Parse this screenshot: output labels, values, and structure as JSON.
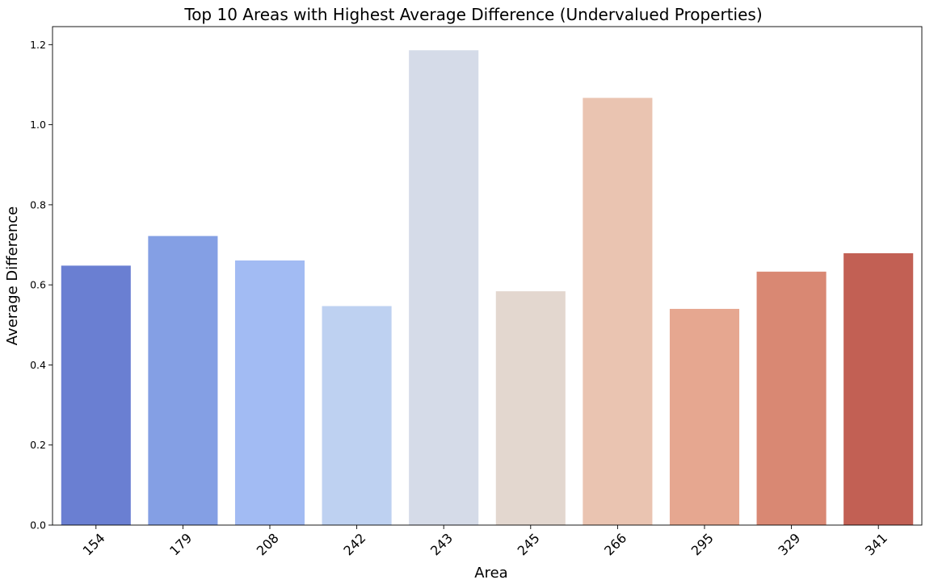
{
  "chart_data": {
    "type": "bar",
    "title": "Top 10 Areas with Highest Average Difference (Undervalued Properties)",
    "xlabel": "Area",
    "ylabel": "Average Difference",
    "categories": [
      "154",
      "179",
      "208",
      "242",
      "243",
      "245",
      "266",
      "295",
      "329",
      "341"
    ],
    "values": [
      0.648,
      0.722,
      0.661,
      0.547,
      1.186,
      0.584,
      1.067,
      0.54,
      0.633,
      0.679
    ],
    "colors": [
      "#6a7fd2",
      "#849fe4",
      "#a2bbf3",
      "#bed1f1",
      "#d5dbe8",
      "#e3d7cf",
      "#eac4b1",
      "#e6a790",
      "#d98873",
      "#c26054"
    ],
    "ylim": [
      0,
      1.245
    ],
    "yticks": [
      "0.0",
      "0.2",
      "0.4",
      "0.6",
      "0.8",
      "1.0",
      "1.2"
    ],
    "ytick_values": [
      0,
      0.2,
      0.4,
      0.6,
      0.8,
      1.0,
      1.2
    ],
    "xtick_rotation_deg": -45,
    "grid": false,
    "legend": "none"
  }
}
